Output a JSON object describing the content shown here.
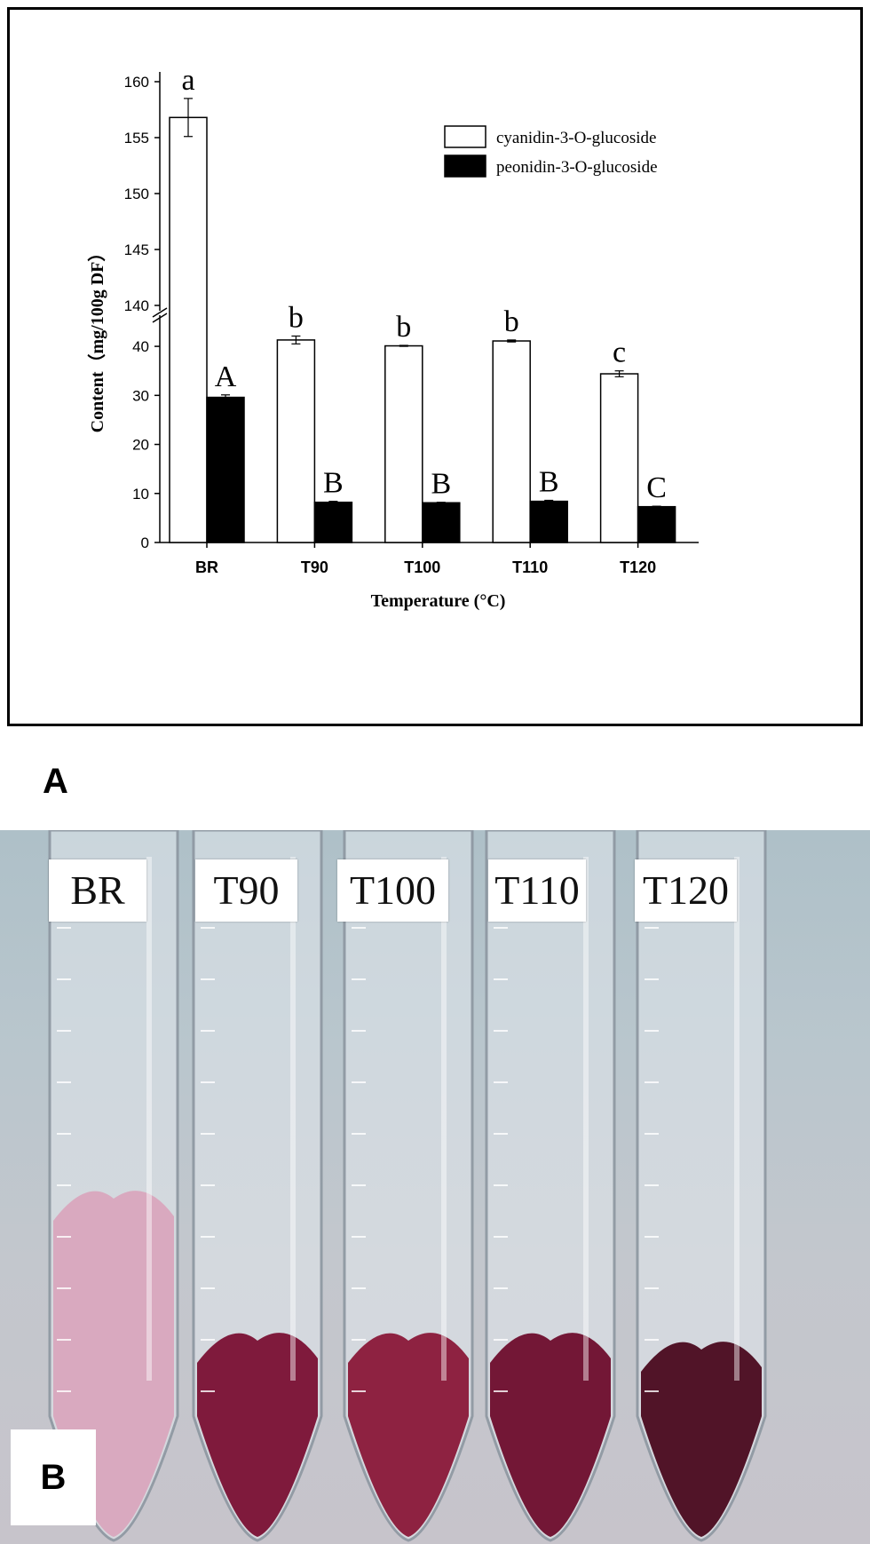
{
  "figure": {
    "panel_a_label": "A",
    "panel_b_label": "B"
  },
  "chart_data": {
    "type": "bar",
    "title": "",
    "xlabel": "Temperature (°C)",
    "ylabel": "Content（mg/100g DF）",
    "categories": [
      "BR",
      "T90",
      "T100",
      "T110",
      "T120"
    ],
    "series": [
      {
        "name": "cyanidin-3-O-glucoside",
        "color": "#ffffff",
        "values": [
          156.8,
          41.3,
          40.1,
          41.1,
          34.4
        ],
        "errors": [
          1.7,
          0.8,
          0.1,
          0.2,
          0.6
        ],
        "letters": [
          "a",
          "b",
          "b",
          "b",
          "c"
        ]
      },
      {
        "name": "peonidin-3-O-glucoside",
        "color": "#000000",
        "values": [
          29.6,
          8.2,
          8.1,
          8.4,
          7.3
        ],
        "errors": [
          0.5,
          0.2,
          0.1,
          0.2,
          0.1
        ],
        "letters": [
          "A",
          "B",
          "B",
          "B",
          "C"
        ]
      }
    ],
    "axis_break": true,
    "lower_segment": {
      "ylim": [
        0,
        44
      ],
      "ticks": [
        0,
        10,
        20,
        30,
        40
      ]
    },
    "upper_segment": {
      "ylim": [
        140,
        160
      ],
      "ticks": [
        140,
        145,
        150,
        155,
        160
      ]
    },
    "legend_position": "top-right",
    "grid": false
  },
  "photo": {
    "tubes": [
      {
        "label": "BR",
        "pellet_color": "#d9a6bd"
      },
      {
        "label": "T90",
        "pellet_color": "#7a1033"
      },
      {
        "label": "T100",
        "pellet_color": "#8a1838"
      },
      {
        "label": "T110",
        "pellet_color": "#6e0d2c"
      },
      {
        "label": "T120",
        "pellet_color": "#4a0a1e"
      }
    ]
  }
}
